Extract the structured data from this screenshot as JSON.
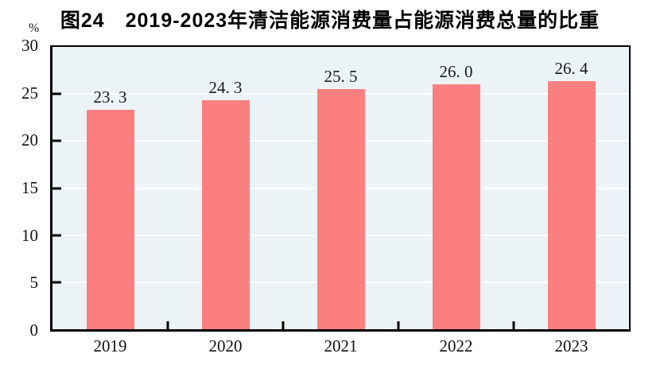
{
  "title": "图24　2019-2023年清洁能源消费量占能源消费总量的比重",
  "y_unit": "%",
  "chart_data": {
    "type": "bar",
    "title": "图24　2019-2023年清洁能源消费量占能源消费总量的比重",
    "categories": [
      "2019",
      "2020",
      "2021",
      "2022",
      "2023"
    ],
    "values": [
      23.3,
      24.3,
      25.5,
      26.0,
      26.4
    ],
    "value_labels": [
      "23. 3",
      "24. 3",
      "25. 5",
      "26. 0",
      "26. 4"
    ],
    "xlabel": "",
    "ylabel": "%",
    "ylim": [
      0,
      30
    ],
    "yticks": [
      0,
      5,
      10,
      15,
      20,
      25,
      30
    ],
    "grid": true,
    "legend": "none",
    "bar_color": "#FB7F7F",
    "plot_bg_color": "#ECF3F6",
    "gridline_color": "#FFFFFF",
    "axis_color": "#000000"
  }
}
